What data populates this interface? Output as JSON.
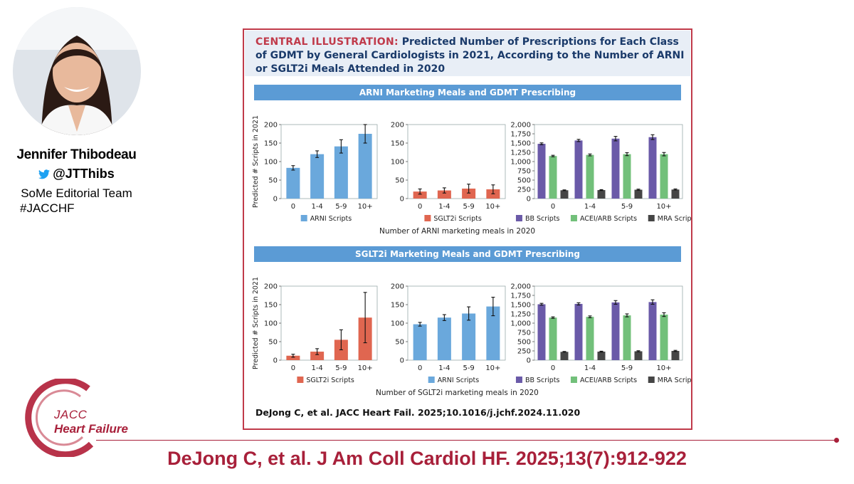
{
  "presenter": {
    "name": "Jennifer Thibodeau",
    "handle": "@JTThibs",
    "team": "SoMe Editorial Team",
    "hashtag": "#JACCHF"
  },
  "journal": {
    "logo_line1": "JACC",
    "logo_line2": "Heart Failure",
    "brand_color": "#a8203a"
  },
  "citation": "DeJong C, et al. J Am Coll Cardiol HF. 2025;13(7):912-922",
  "illustration": {
    "title_lead": "CENTRAL ILLUSTRATION:",
    "title_rest": " Predicted Number of Prescriptions for Each Class of GDMT by General Cardiologists in 2021, According to the Number of ARNI or SGLT2i Meals Attended in 2020",
    "reference": "DeJong C, et al. JACC Heart Fail. 2025;10.1016/j.jchf.2024.11.020",
    "sections": [
      {
        "title": "ARNI Marketing Meals and GDMT Prescribing",
        "xcaption": "Number of ARNI marketing meals in 2020"
      },
      {
        "title": "SGLT2i Marketing Meals and GDMT Prescribing",
        "xcaption": "Number of SGLT2i marketing meals in 2020"
      }
    ]
  },
  "colors": {
    "arni": "#6aa8dc",
    "sglt2i": "#e06650",
    "bb": "#6a5aa8",
    "acei": "#72c07a",
    "mra": "#454545"
  },
  "chart_data": [
    {
      "type": "bar",
      "panel": "ARNI meals - ARNI scripts",
      "categories": [
        "0",
        "1-4",
        "5-9",
        "10+"
      ],
      "ylabel": "Predicted # Scripts in 2021",
      "ylim": [
        0,
        200
      ],
      "yticks": [
        0,
        50,
        100,
        150,
        200
      ],
      "series": [
        {
          "name": "ARNI Scripts",
          "color_key": "arni",
          "values": [
            83,
            120,
            141,
            175
          ],
          "errors": [
            6,
            9,
            18,
            25
          ]
        }
      ]
    },
    {
      "type": "bar",
      "panel": "ARNI meals - SGLT2i scripts",
      "categories": [
        "0",
        "1-4",
        "5-9",
        "10+"
      ],
      "ylim": [
        0,
        200
      ],
      "yticks": [
        0,
        50,
        100,
        150,
        200
      ],
      "series": [
        {
          "name": "SGLT2i Scripts",
          "color_key": "sglt2i",
          "values": [
            19,
            22,
            27,
            25
          ],
          "errors": [
            7,
            7,
            12,
            12
          ]
        }
      ]
    },
    {
      "type": "bar",
      "panel": "ARNI meals - BB/ACEI/MRA scripts",
      "categories": [
        "0",
        "1-4",
        "5-9",
        "10+"
      ],
      "ylim": [
        0,
        2000
      ],
      "yticks": [
        0,
        250,
        500,
        750,
        1000,
        1250,
        1500,
        1750,
        2000
      ],
      "series": [
        {
          "name": "BB Scripts",
          "color_key": "bb",
          "values": [
            1480,
            1570,
            1620,
            1660
          ],
          "errors": [
            25,
            30,
            60,
            65
          ]
        },
        {
          "name": "ACEI/ARB Scripts",
          "color_key": "acei",
          "values": [
            1150,
            1180,
            1200,
            1200
          ],
          "errors": [
            20,
            25,
            40,
            45
          ]
        },
        {
          "name": "MRA Scripts",
          "color_key": "mra",
          "values": [
            225,
            230,
            240,
            245
          ],
          "errors": [
            10,
            12,
            15,
            15
          ]
        }
      ]
    },
    {
      "type": "bar",
      "panel": "SGLT2i meals - SGLT2i scripts",
      "categories": [
        "0",
        "1-4",
        "5-9",
        "10+"
      ],
      "ylabel": "Predicted # Scripts in 2021",
      "ylim": [
        0,
        200
      ],
      "yticks": [
        0,
        50,
        100,
        150,
        200
      ],
      "series": [
        {
          "name": "SGLT2i Scripts",
          "color_key": "sglt2i",
          "values": [
            12,
            23,
            55,
            115
          ],
          "errors": [
            4,
            8,
            27,
            68
          ]
        }
      ]
    },
    {
      "type": "bar",
      "panel": "SGLT2i meals - ARNI scripts",
      "categories": [
        "0",
        "1-4",
        "5-9",
        "10+"
      ],
      "ylim": [
        0,
        200
      ],
      "yticks": [
        0,
        50,
        100,
        150,
        200
      ],
      "series": [
        {
          "name": "ARNI Scripts",
          "color_key": "arni",
          "values": [
            97,
            115,
            126,
            145
          ],
          "errors": [
            5,
            8,
            18,
            25
          ]
        }
      ]
    },
    {
      "type": "bar",
      "panel": "SGLT2i meals - BB/ACEI/MRA scripts",
      "categories": [
        "0",
        "1-4",
        "5-9",
        "10+"
      ],
      "ylim": [
        0,
        2000
      ],
      "yticks": [
        0,
        250,
        500,
        750,
        1000,
        1250,
        1500,
        1750,
        2000
      ],
      "series": [
        {
          "name": "BB Scripts",
          "color_key": "bb",
          "values": [
            1510,
            1520,
            1560,
            1570
          ],
          "errors": [
            25,
            30,
            50,
            60
          ]
        },
        {
          "name": "ACEI/ARB Scripts",
          "color_key": "acei",
          "values": [
            1150,
            1170,
            1210,
            1230
          ],
          "errors": [
            20,
            25,
            40,
            50
          ]
        },
        {
          "name": "MRA Scripts",
          "color_key": "mra",
          "values": [
            225,
            230,
            240,
            250
          ],
          "errors": [
            10,
            12,
            15,
            15
          ]
        }
      ]
    }
  ]
}
